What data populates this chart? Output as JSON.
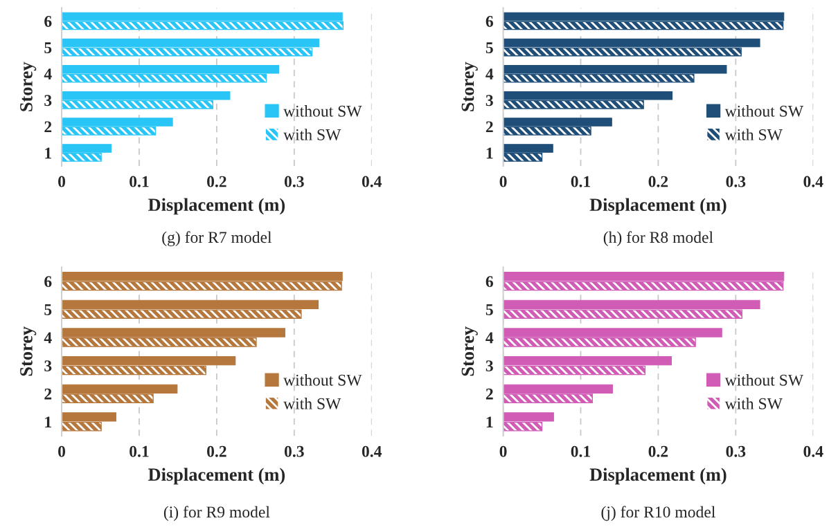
{
  "chart_data": [
    {
      "type": "bar",
      "orientation": "horizontal",
      "title": "(g) for R7 model",
      "xlabel": "Displacement (m)",
      "ylabel": "Storey",
      "categories": [
        "6",
        "5",
        "4",
        "3",
        "2",
        "1"
      ],
      "series": [
        {
          "name": "without SW",
          "color": "#29c5f6",
          "values": [
            0.362,
            0.332,
            0.28,
            0.217,
            0.143,
            0.064
          ]
        },
        {
          "name": "with SW",
          "color": "#29c5f6",
          "values": [
            0.363,
            0.323,
            0.264,
            0.195,
            0.121,
            0.051
          ]
        }
      ],
      "xlim": [
        0,
        0.4
      ],
      "xticks": [
        0,
        0.1,
        0.2,
        0.3,
        0.4
      ],
      "grid": "x",
      "legend": "bottom right"
    },
    {
      "type": "bar",
      "orientation": "horizontal",
      "title": "(h) for R8 model",
      "xlabel": "Displacement (m)",
      "ylabel": "Storey",
      "categories": [
        "6",
        "5",
        "4",
        "3",
        "2",
        "1"
      ],
      "series": [
        {
          "name": "without SW",
          "color": "#1f4e79",
          "values": [
            0.362,
            0.331,
            0.288,
            0.218,
            0.14,
            0.064
          ]
        },
        {
          "name": "with SW",
          "color": "#1f4e79",
          "values": [
            0.361,
            0.307,
            0.246,
            0.181,
            0.113,
            0.05
          ]
        }
      ],
      "xlim": [
        0,
        0.4
      ],
      "xticks": [
        0,
        0.1,
        0.2,
        0.3,
        0.4
      ],
      "grid": "x",
      "legend": "bottom right"
    },
    {
      "type": "bar",
      "orientation": "horizontal",
      "title": "(i) for R9 model",
      "xlabel": "Displacement (m)",
      "ylabel": "Storey",
      "categories": [
        "6",
        "5",
        "4",
        "3",
        "2",
        "1"
      ],
      "series": [
        {
          "name": "without SW",
          "color": "#b5773c",
          "values": [
            0.362,
            0.331,
            0.288,
            0.224,
            0.149,
            0.07
          ]
        },
        {
          "name": "with SW",
          "color": "#b5773c",
          "values": [
            0.361,
            0.309,
            0.251,
            0.186,
            0.118,
            0.051
          ]
        }
      ],
      "xlim": [
        0,
        0.4
      ],
      "xticks": [
        0,
        0.1,
        0.2,
        0.3,
        0.4
      ],
      "grid": "x",
      "legend": "bottom right"
    },
    {
      "type": "bar",
      "orientation": "horizontal",
      "title": "(j) for R10 model",
      "xlabel": "Displacement (m)",
      "ylabel": "Storey",
      "categories": [
        "6",
        "5",
        "4",
        "3",
        "2",
        "1"
      ],
      "series": [
        {
          "name": "without SW",
          "color": "#d05cb6",
          "values": [
            0.362,
            0.331,
            0.282,
            0.217,
            0.141,
            0.065
          ]
        },
        {
          "name": "with SW",
          "color": "#d05cb6",
          "values": [
            0.361,
            0.308,
            0.248,
            0.183,
            0.115,
            0.05
          ]
        }
      ],
      "xlim": [
        0,
        0.4
      ],
      "xticks": [
        0,
        0.1,
        0.2,
        0.3,
        0.4
      ],
      "grid": "x",
      "legend": "bottom right"
    }
  ]
}
